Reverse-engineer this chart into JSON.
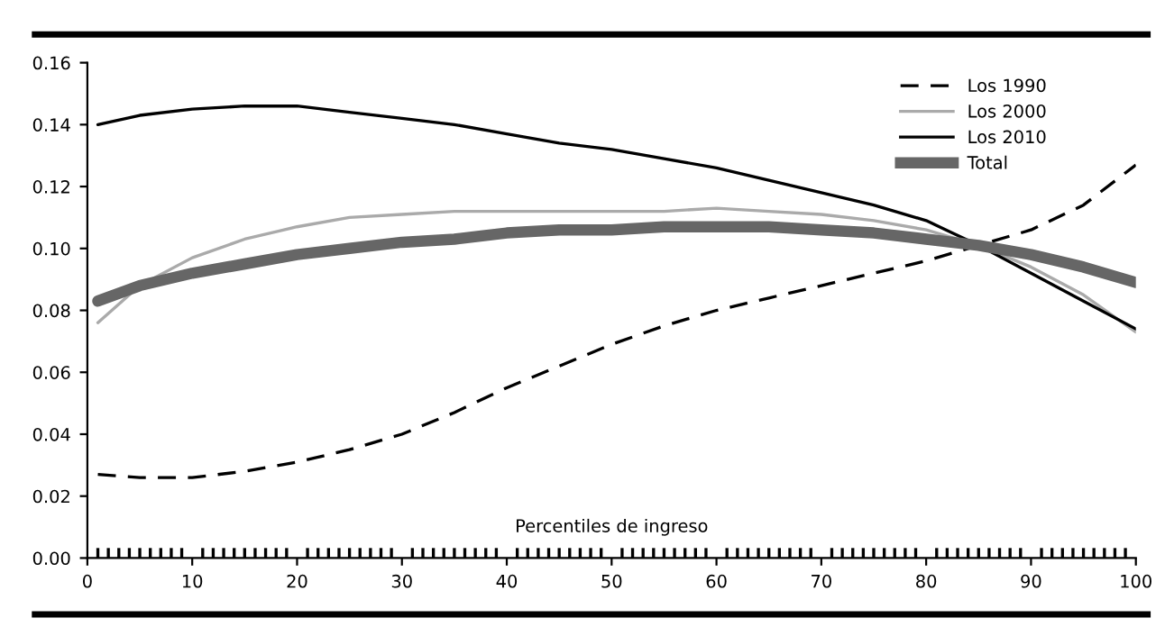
{
  "chart_data": {
    "type": "line",
    "xlabel": "Percentiles de ingreso",
    "x": [
      1,
      5,
      10,
      15,
      20,
      25,
      30,
      35,
      40,
      45,
      50,
      55,
      60,
      65,
      70,
      75,
      80,
      85,
      90,
      95,
      100
    ],
    "series": [
      {
        "name": "Los 1990",
        "color": "#000000",
        "line_style": "dashed",
        "values": [
          0.027,
          0.026,
          0.026,
          0.028,
          0.031,
          0.035,
          0.04,
          0.047,
          0.055,
          0.062,
          0.069,
          0.075,
          0.08,
          0.084,
          0.088,
          0.092,
          0.096,
          0.101,
          0.106,
          0.114,
          0.127
        ]
      },
      {
        "name": "Los 2000",
        "color": "#aaaaaa",
        "line_style": "solid",
        "values": [
          0.076,
          0.088,
          0.097,
          0.103,
          0.107,
          0.11,
          0.111,
          0.112,
          0.112,
          0.112,
          0.112,
          0.112,
          0.113,
          0.112,
          0.111,
          0.109,
          0.106,
          0.101,
          0.094,
          0.085,
          0.073
        ]
      },
      {
        "name": "Los 2010",
        "color": "#000000",
        "line_style": "solid",
        "values": [
          0.14,
          0.143,
          0.145,
          0.146,
          0.146,
          0.144,
          0.142,
          0.14,
          0.137,
          0.134,
          0.132,
          0.129,
          0.126,
          0.122,
          0.118,
          0.114,
          0.109,
          0.101,
          0.092,
          0.083,
          0.074
        ]
      },
      {
        "name": "Total",
        "color": "#666666",
        "line_style": "solid",
        "values": [
          0.083,
          0.088,
          0.092,
          0.095,
          0.098,
          0.1,
          0.102,
          0.103,
          0.105,
          0.106,
          0.106,
          0.107,
          0.107,
          0.107,
          0.106,
          0.105,
          0.103,
          0.101,
          0.098,
          0.094,
          0.089
        ]
      }
    ],
    "xlim": [
      0,
      100
    ],
    "xticks": [
      0,
      10,
      20,
      30,
      40,
      50,
      60,
      70,
      80,
      90,
      100
    ],
    "ylim": [
      0,
      0.16
    ],
    "yticks": [
      {
        "value": 0,
        "label": "0.00"
      },
      {
        "value": 0.02,
        "label": "0.02"
      },
      {
        "value": 0.04,
        "label": "0.04"
      },
      {
        "value": 0.06,
        "label": "0.06"
      },
      {
        "value": 0.08,
        "label": "0.08"
      },
      {
        "value": 0.1,
        "label": "0.10"
      },
      {
        "value": 0.12,
        "label": "0.12"
      },
      {
        "value": 0.14,
        "label": "0.14"
      },
      {
        "value": 0.16,
        "label": "0.16"
      }
    ],
    "grid": false,
    "legend": "top right",
    "marker": "none"
  }
}
